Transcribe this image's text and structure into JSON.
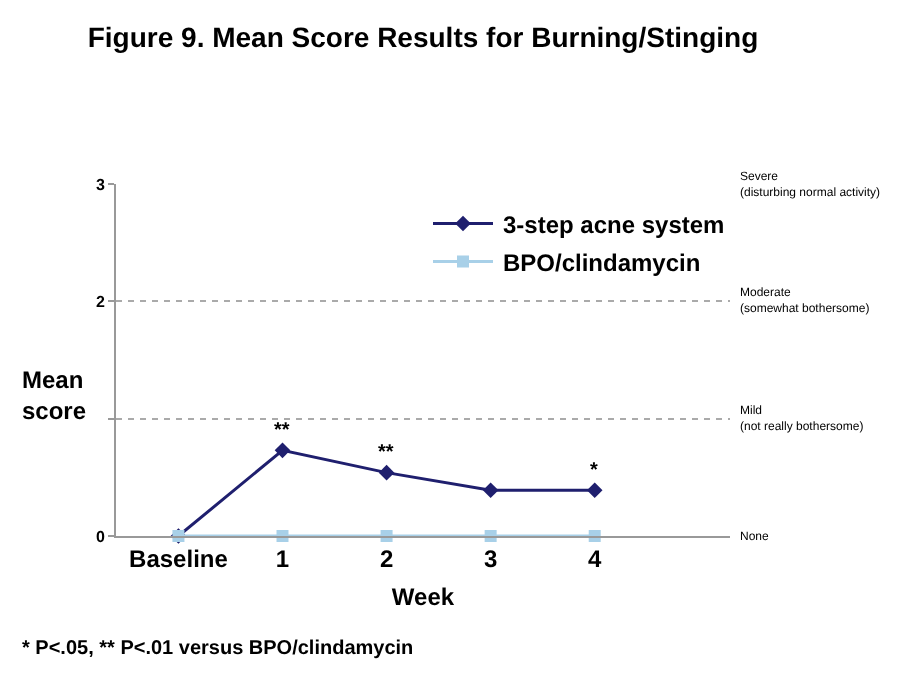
{
  "chart_data": {
    "type": "line",
    "title": "Figure 9. Mean Score Results for Burning/Stinging",
    "xlabel": "Week",
    "ylabel": "Mean\nscore",
    "categories": [
      "Baseline",
      "1",
      "2",
      "3",
      "4"
    ],
    "series": [
      {
        "name": "3-step acne system",
        "color": "#1f1f6e",
        "marker": "diamond",
        "values": [
          0,
          0.73,
          0.54,
          0.39,
          0.39
        ]
      },
      {
        "name": "BPO/clindamycin",
        "color": "#a8d0e8",
        "marker": "square",
        "values": [
          0,
          0,
          0,
          0,
          0
        ]
      }
    ],
    "ylim": [
      0,
      3
    ],
    "yticks": [
      0,
      {
        "value": 1,
        "label": null
      },
      2,
      3
    ],
    "grid": "y",
    "legend": "top",
    "line_style": "solid",
    "annotations": [
      "None",
      "Mild\n(not really bothersome)",
      "Moderate\n(somewhat bothersome)",
      "Severe\n(disturbing normal activity)",
      {
        "text": "**",
        "x": "1",
        "y": 0.73
      },
      {
        "text": "**",
        "x": "2",
        "y": 0.54
      },
      {
        "text": "*",
        "x": "4",
        "y": 0.39
      },
      "* P<.05, ** P<.01 versus BPO/clindamycin"
    ]
  }
}
